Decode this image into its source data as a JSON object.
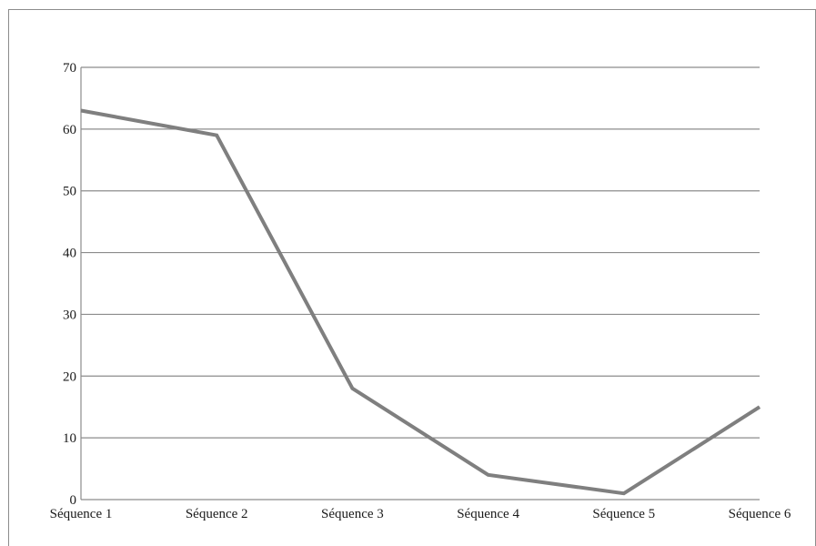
{
  "chart_data": {
    "type": "line",
    "title": "",
    "xlabel": "",
    "ylabel": "",
    "categories": [
      "Séquence 1",
      "Séquence 2",
      "Séquence 3",
      "Séquence 4",
      "Séquence 5",
      "Séquence 6"
    ],
    "series": [
      {
        "values": [
          63,
          59,
          18,
          4,
          1,
          15
        ],
        "color": "#7f7f7f"
      }
    ],
    "ylim": [
      0,
      70
    ],
    "yticks": [
      0,
      10,
      20,
      30,
      40,
      50,
      60,
      70
    ],
    "grid": true,
    "legend": "none",
    "grid_color": "#8c8c8c",
    "line_color": "#7f7f7f"
  }
}
